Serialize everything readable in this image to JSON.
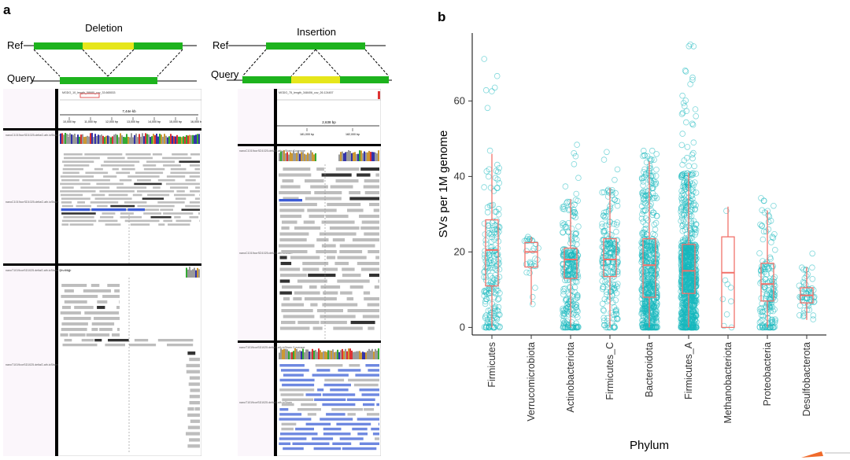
{
  "panel_a": {
    "letter": "a",
    "deletion": {
      "title": "Deletion",
      "ref_label": "Ref",
      "query_label": "Query",
      "colors": {
        "segment": "#1db31d",
        "variant": "#e6e61a"
      }
    },
    "insertion": {
      "title": "Insertion",
      "ref_label": "Ref",
      "query_label": "Query",
      "colors": {
        "segment": "#1db31d",
        "variant": "#e6e61a"
      }
    },
    "igv_left": {
      "locus": "MGDO_10_length_58680_cov_33.665533",
      "span": "7,44e kb",
      "ticks": [
        "10,000 bp",
        "11,000 bp",
        "12,000 bp",
        "13,000 bp",
        "14,000 bp",
        "15,000 bp",
        "16,000 bp"
      ],
      "track1_label": "nanoC1019corSD1025.deltaG.ath.ioSbam Coverage",
      "track2_label": "nanoC1019corSD1025.deltaG.ath.ioSbam",
      "track3_label": "nanoT1019corSD1025.deltaG.ath.ioSbam Coverage",
      "track3_scale": "[0 - 201]",
      "track4_label": "nanoT1019corSD1025.deltaG.ath.ioSbam"
    },
    "igv_right": {
      "locus": "MGDO_75_length_348406_cov_26.124457",
      "span": "2,638 bp",
      "ticks": [
        "181,000 bp",
        "182,000 bp"
      ],
      "track1_label": "nanoC1019corSD1025.deltaG.ath.ioSbam Coverage",
      "track2_label": "nanoC1019corSD1025.deltaG.ath.ioSbam",
      "track3_label": "nanoT1019corSD1025.deltaG.ath.ioSbam Coverage",
      "track4_label": "nanoT1019corSD1025.deltaG.ath.ioSbam"
    }
  },
  "panel_b": {
    "letter": "b"
  },
  "chart_data": {
    "type": "box",
    "xlabel": "Phylum",
    "ylabel": "SVs per 1M genome",
    "ylim": [
      -2,
      78
    ],
    "yticks": [
      0,
      20,
      40,
      60
    ],
    "grid": false,
    "colors": {
      "points": "#17b8bd",
      "box": "#f2726b"
    },
    "categories": [
      "Firmicutes",
      "Verrucomicrobiota",
      "Actinobacteriota",
      "Firmicutes_C",
      "Bacteroidota",
      "Firmicutes_A",
      "Methanobacteriota",
      "Proteobacteria",
      "Desulfobacterota"
    ],
    "boxes": [
      {
        "q1": 11,
        "median": 20.5,
        "q3": 28.5,
        "whisker_low": 0,
        "whisker_high": 46,
        "n": 200,
        "max": 72
      },
      {
        "q1": 16,
        "median": 20,
        "q3": 22.5,
        "whisker_low": 6,
        "whisker_high": 24,
        "n": 28,
        "max": 24
      },
      {
        "q1": 13,
        "median": 18,
        "q3": 21,
        "whisker_low": 0,
        "whisker_high": 34,
        "n": 280,
        "max": 49
      },
      {
        "q1": 13.5,
        "median": 18,
        "q3": 23.5,
        "whisker_low": 0,
        "whisker_high": 37,
        "n": 220,
        "max": 56
      },
      {
        "q1": 8,
        "median": 16.5,
        "q3": 23.5,
        "whisker_low": 0,
        "whisker_high": 44,
        "n": 550,
        "max": 47
      },
      {
        "q1": 9,
        "median": 15,
        "q3": 22,
        "whisker_low": 0,
        "whisker_high": 41,
        "n": 2000,
        "max": 75
      },
      {
        "q1": 0,
        "median": 14.5,
        "q3": 24,
        "whisker_low": 0,
        "whisker_high": 32,
        "n": 9,
        "max": 32
      },
      {
        "q1": 7,
        "median": 11.5,
        "q3": 17,
        "whisker_low": 0,
        "whisker_high": 31,
        "n": 160,
        "max": 35
      },
      {
        "q1": 6.5,
        "median": 8.5,
        "q3": 10.5,
        "whisker_low": 2,
        "whisker_high": 16,
        "n": 60,
        "max": 22
      }
    ]
  }
}
